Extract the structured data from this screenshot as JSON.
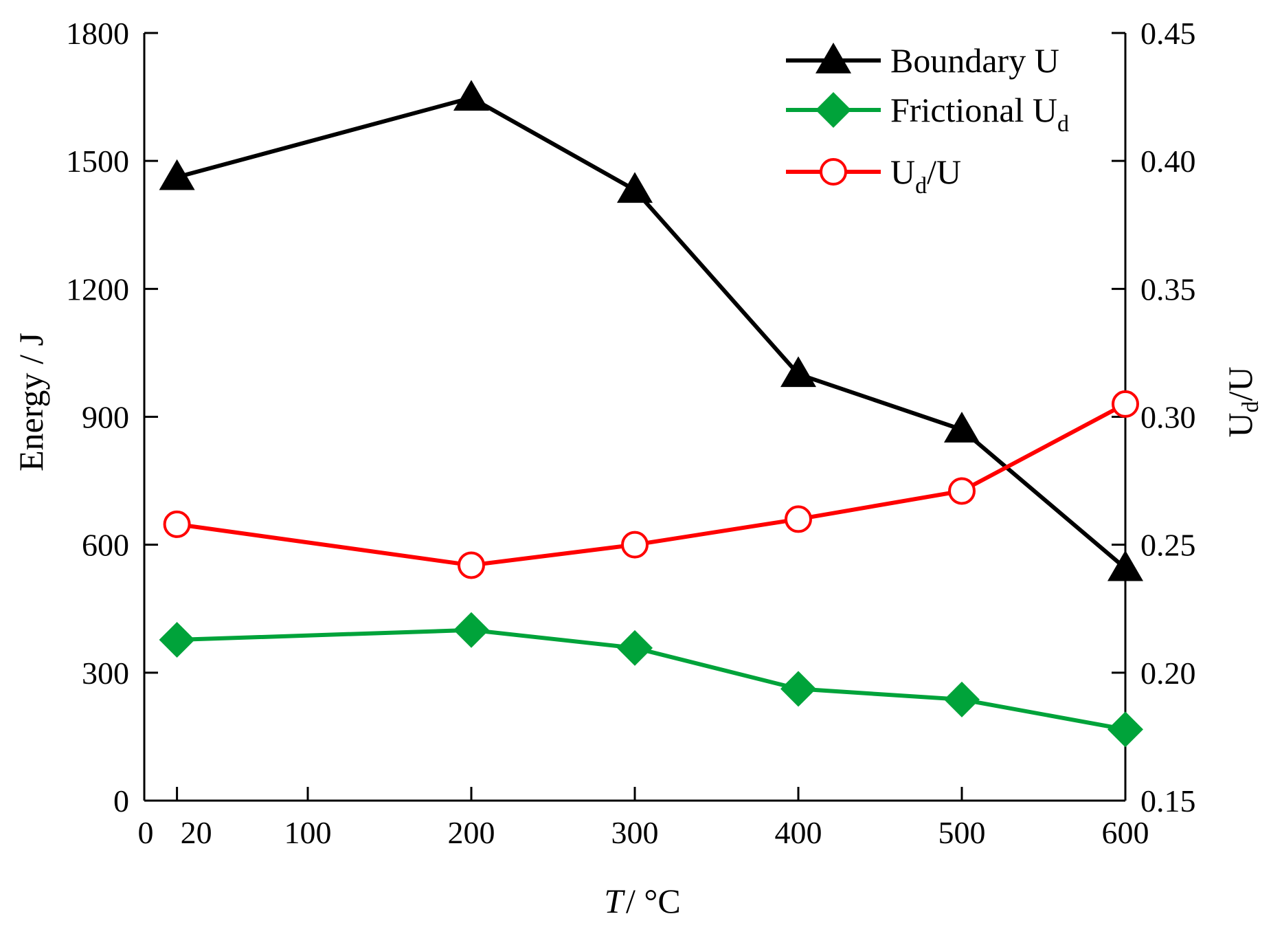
{
  "chart_data": {
    "type": "line",
    "title": "",
    "xlabel": "T",
    "xlabel_unit": "/ °C",
    "ylabel_left": "Energy / J",
    "ylabel_right_main": "U",
    "ylabel_right_sub": "d",
    "ylabel_right_tail": "/U",
    "x": [
      20,
      200,
      300,
      400,
      500,
      600
    ],
    "xlim": [
      0,
      600
    ],
    "xticks": [
      0,
      20,
      100,
      200,
      300,
      400,
      500,
      600
    ],
    "xtick_labels": [
      "0",
      "20",
      "100",
      "200",
      "300",
      "400",
      "500",
      "600"
    ],
    "ylim_left": [
      0,
      1800
    ],
    "yticks_left": [
      0,
      300,
      600,
      900,
      1200,
      1500,
      1800
    ],
    "ytick_labels_left": [
      "0",
      "300",
      "600",
      "900",
      "1200",
      "1500",
      "1800"
    ],
    "ylim_right": [
      0.15,
      0.45
    ],
    "yticks_right": [
      0.15,
      0.2,
      0.25,
      0.3,
      0.35,
      0.4,
      0.45
    ],
    "ytick_labels_right": [
      "0.15",
      "0.20",
      "0.25",
      "0.30",
      "0.35",
      "0.40",
      "0.45"
    ],
    "legend_position": "top-right",
    "series": [
      {
        "name": "Boundary U",
        "name_main": "Boundary U",
        "name_sub": "",
        "name_tail": "",
        "axis": "left",
        "marker": "triangle",
        "color": "#000000",
        "values": [
          1462,
          1648,
          1432,
          1000,
          870,
          545
        ]
      },
      {
        "name": "Frictional Ud",
        "name_main": "Frictional U",
        "name_sub": "d",
        "name_tail": "",
        "axis": "left",
        "marker": "diamond",
        "color": "#00A33A",
        "values": [
          377,
          400,
          358,
          262,
          237,
          167
        ]
      },
      {
        "name": "Ud/U",
        "name_main": "U",
        "name_sub": "d",
        "name_tail": "/U",
        "axis": "right",
        "marker": "open-circle",
        "color": "#FF0000",
        "values": [
          0.258,
          0.242,
          0.25,
          0.26,
          0.271,
          0.305
        ]
      }
    ]
  }
}
